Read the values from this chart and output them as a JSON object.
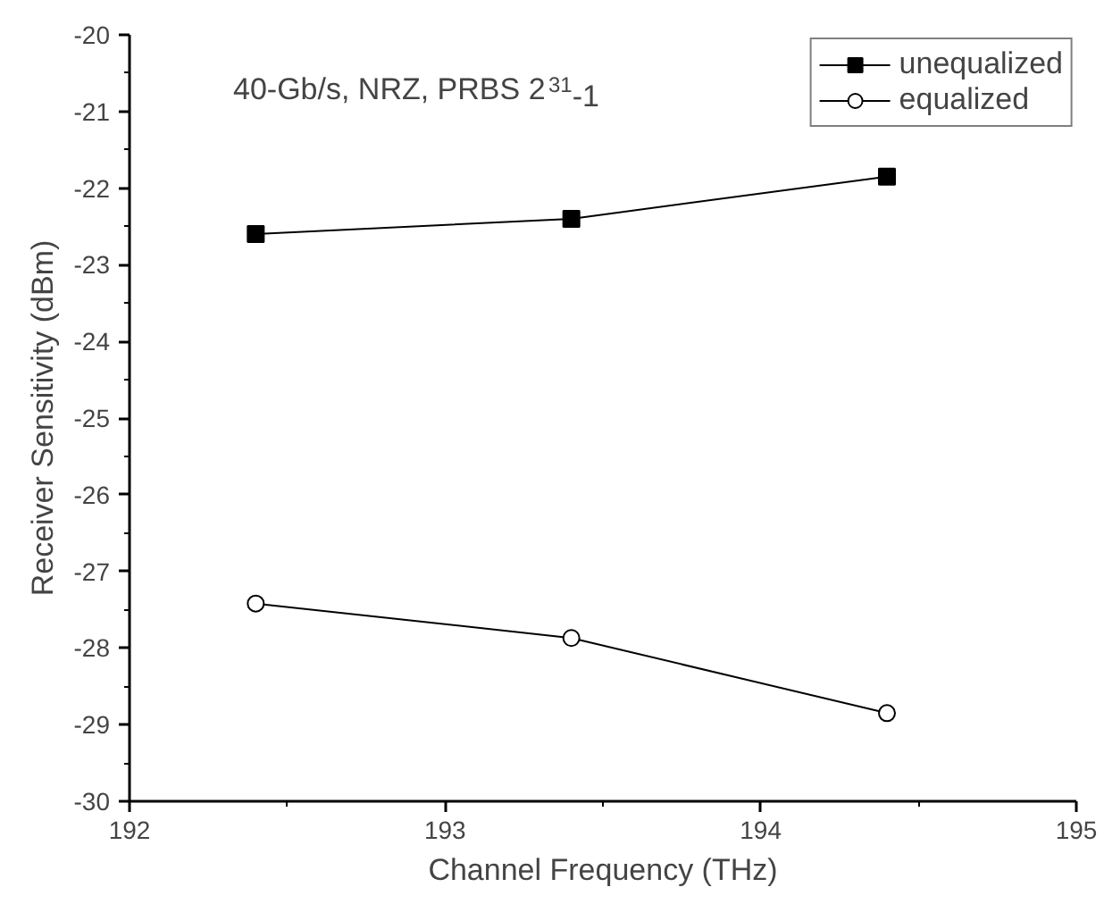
{
  "chart_data": {
    "type": "line",
    "xlabel": "Channel Frequency (THz)",
    "ylabel": "Receiver Sensitivity (dBm)",
    "annotations": [
      "40-Gb/s, NRZ, PRBS 2$^{31}$-1"
    ],
    "x": [
      192.4,
      193.4,
      194.4
    ],
    "series": [
      {
        "name": "unequalized",
        "color": "#000000",
        "marker": "square",
        "values": [
          -22.6,
          -22.4,
          -21.85
        ]
      },
      {
        "name": "equalized",
        "color": "#000000",
        "marker": "circle",
        "values": [
          -27.42,
          -27.87,
          -28.85
        ]
      }
    ],
    "xlim": [
      192,
      195
    ],
    "xticks": [
      192,
      193,
      194,
      195
    ],
    "ylim": [
      -30,
      -20
    ],
    "yticks": [
      -30,
      -29,
      -28,
      -27,
      -26,
      -25,
      -24,
      -23,
      -22,
      -21,
      -20
    ],
    "grid": false,
    "legend": "top right",
    "line_style": "solid"
  }
}
